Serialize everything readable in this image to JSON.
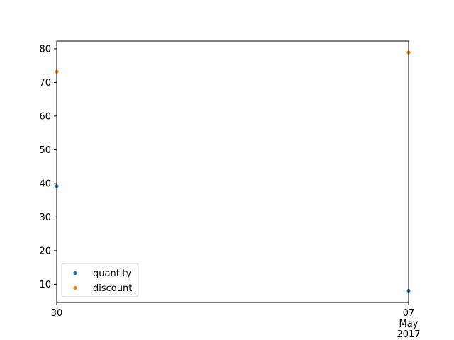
{
  "chart_data": {
    "type": "scatter",
    "title": "",
    "xlabel": "",
    "ylabel": "",
    "x": [
      "2017-04-30",
      "2017-05-07"
    ],
    "x_tick_labels": [
      {
        "lines": [
          "30"
        ]
      },
      {
        "lines": [
          "07",
          "May",
          "2017"
        ]
      }
    ],
    "xlim": [
      "2017-04-30",
      "2017-05-07"
    ],
    "ylim": [
      4.6,
      82.3
    ],
    "y_ticks": [
      10,
      20,
      30,
      40,
      50,
      60,
      70,
      80
    ],
    "grid": false,
    "legend_position": "lower-left",
    "series": [
      {
        "name": "quantity",
        "color": "#1f77b4",
        "values": [
          39.2,
          8.1
        ]
      },
      {
        "name": "discount",
        "color": "#ff7f0e",
        "values": [
          73.2,
          78.9
        ]
      }
    ]
  }
}
